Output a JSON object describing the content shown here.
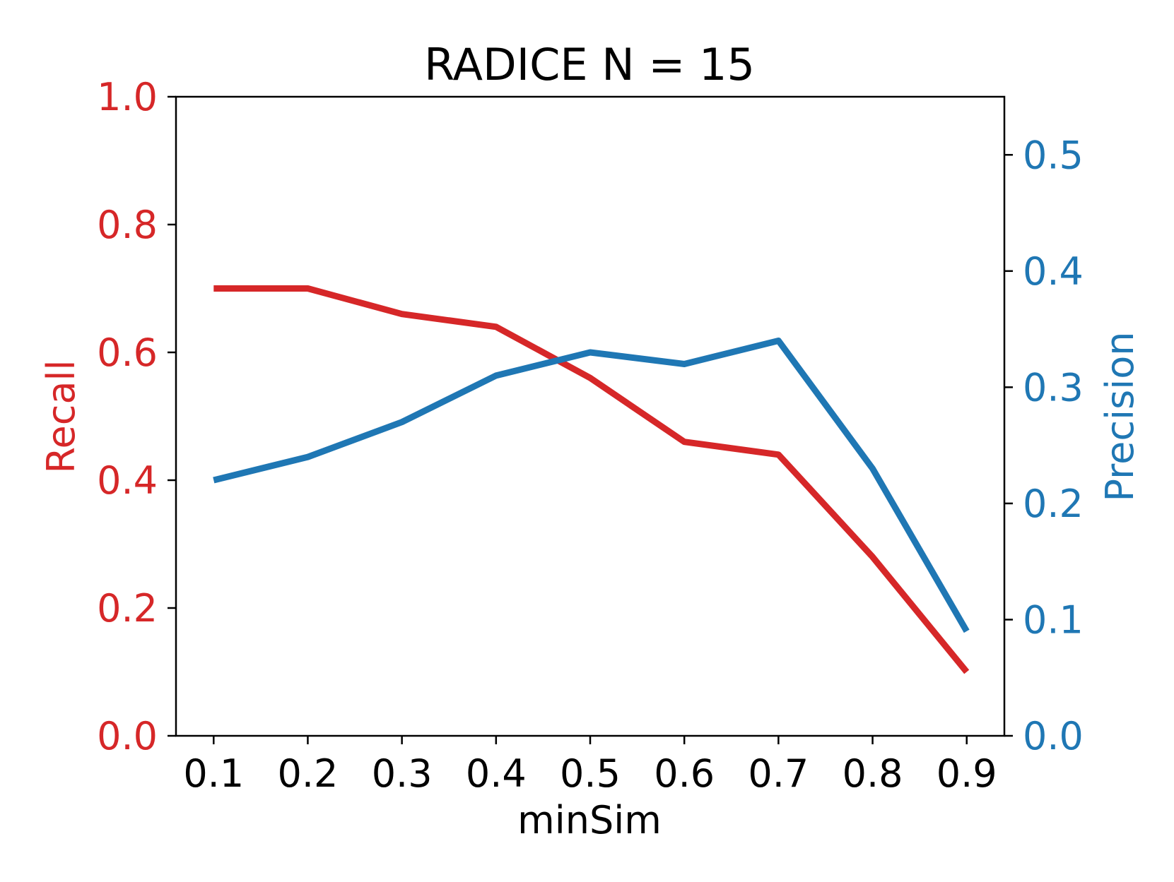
{
  "chart_data": {
    "type": "line",
    "title": "RADICE N = 15",
    "xlabel": "minSim",
    "x": [
      0.1,
      0.2,
      0.3,
      0.4,
      0.5,
      0.6,
      0.7,
      0.8,
      0.9
    ],
    "x_tick_labels": [
      "0.1",
      "0.2",
      "0.3",
      "0.4",
      "0.5",
      "0.6",
      "0.7",
      "0.8",
      "0.9"
    ],
    "xlim": [
      0.06,
      0.94
    ],
    "left_axis": {
      "label": "Recall",
      "color": "#d62728",
      "ylim": [
        0.0,
        1.0
      ],
      "ticks": [
        0.0,
        0.2,
        0.4,
        0.6,
        0.8,
        1.0
      ],
      "tick_labels": [
        "0.0",
        "0.2",
        "0.4",
        "0.6",
        "0.8",
        "1.0"
      ]
    },
    "right_axis": {
      "label": "Precision",
      "color": "#1f77b4",
      "ylim": [
        0.0,
        0.55
      ],
      "ticks": [
        0.0,
        0.1,
        0.2,
        0.3,
        0.4,
        0.5
      ],
      "tick_labels": [
        "0.0",
        "0.1",
        "0.2",
        "0.3",
        "0.4",
        "0.5"
      ]
    },
    "series": [
      {
        "axis": "left",
        "color": "#d62728",
        "values": [
          0.7,
          0.7,
          0.66,
          0.64,
          0.56,
          0.46,
          0.44,
          0.28,
          0.1
        ]
      },
      {
        "axis": "right",
        "color": "#1f77b4",
        "values": [
          0.22,
          0.24,
          0.27,
          0.31,
          0.33,
          0.32,
          0.34,
          0.23,
          0.09
        ]
      }
    ],
    "grid": false,
    "legend": "none"
  }
}
